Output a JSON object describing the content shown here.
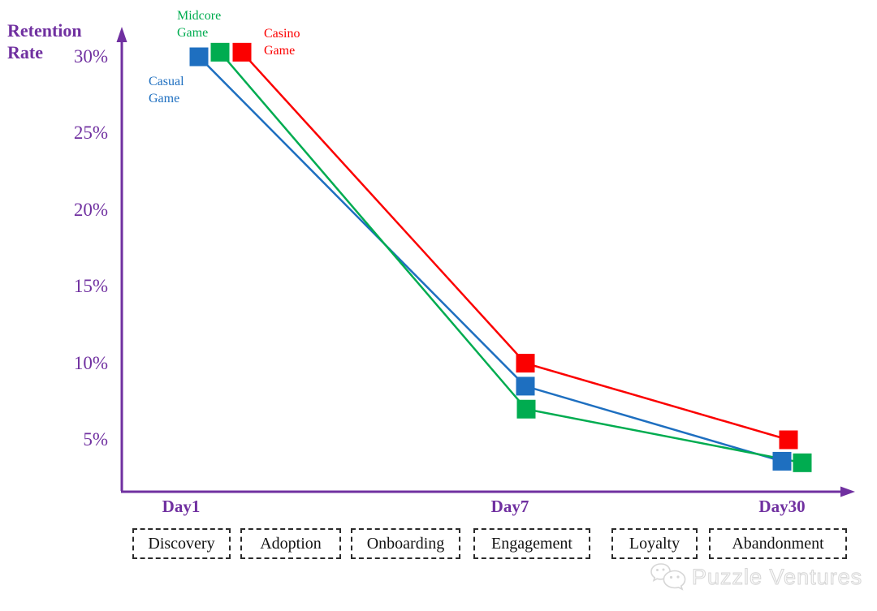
{
  "colors": {
    "axis_purple": "#7030A0",
    "casual_blue": "#1E6FC0",
    "midcore_green": "#00AC50",
    "casino_red": "#FB0000",
    "stage_box_border": "#2B2B2B",
    "watermark_gray": "#D6D6D6"
  },
  "ylabel": {
    "line1": "Retention",
    "line2": "Rate"
  },
  "stages": [
    "Discovery",
    "Adoption",
    "Onboarding",
    "Engagement",
    "Loyalty",
    "Abandonment"
  ],
  "watermark": {
    "text": "Puzzle Ventures",
    "icon": "wechat-speech-bubbles"
  },
  "chart_data": {
    "type": "line",
    "title": "",
    "xlabel": "",
    "ylabel": "Retention Rate",
    "categories": [
      "Day1",
      "Day7",
      "Day30"
    ],
    "yticks": [
      {
        "value": 30,
        "label": "30%"
      },
      {
        "value": 25,
        "label": "25%"
      },
      {
        "value": 20,
        "label": "20%"
      },
      {
        "value": 15,
        "label": "15%"
      },
      {
        "value": 10,
        "label": "10%"
      },
      {
        "value": 5,
        "label": "5%"
      }
    ],
    "ylim": [
      0,
      32
    ],
    "grid": false,
    "marker": "square",
    "legend_position": "labels-near-day1-markers",
    "series": [
      {
        "name": "Casual Game",
        "color": "#1E6FC0",
        "values": [
          30,
          8.5,
          3.6
        ]
      },
      {
        "name": "Midcore Game",
        "color": "#00AC50",
        "values": [
          30.3,
          7,
          3.5
        ]
      },
      {
        "name": "Casino Game",
        "color": "#FB0000",
        "values": [
          30.3,
          10,
          5
        ]
      }
    ]
  }
}
